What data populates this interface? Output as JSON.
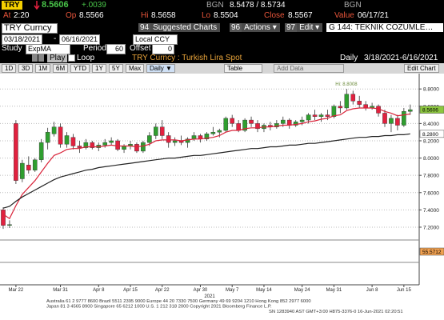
{
  "header": {
    "ticker": "TRY",
    "last_price": "8.5606",
    "change": "+.0039",
    "bid_source": "BGN",
    "bid_ask": "8.5478 / 8.5734",
    "ask_source": "BGN"
  },
  "quote": [
    {
      "label": "At",
      "value": "2:20"
    },
    {
      "label": "Op",
      "value": "8.5566"
    },
    {
      "label": "Hi",
      "value": "8.5658"
    },
    {
      "label": "Lo",
      "value": "8.5504"
    },
    {
      "label": "Close",
      "value": "8.5567"
    },
    {
      "label": "Value",
      "value": "06/17/21"
    }
  ],
  "menu": {
    "security": "TRY Curncy",
    "buttons": [
      {
        "num": "94",
        "label": "Suggested Charts"
      },
      {
        "num": "96",
        "label": "Actions ▾"
      },
      {
        "num": "97",
        "label": "Edit ▾"
      }
    ],
    "template": "G 144: TEKNIK COZUMLE…"
  },
  "range": {
    "start": "03/18/2021",
    "sep": "-",
    "end": "06/16/2021",
    "currency": "Local CCY"
  },
  "study": {
    "label": "Study",
    "name": "ExpMA",
    "period_label": "Period",
    "period": "60",
    "offset_label": "Offset",
    "offset": "0"
  },
  "controls": {
    "play": "Play",
    "loop": "Loop",
    "frequency": "Daily",
    "dates": "3/18/2021-6/16/2021"
  },
  "toolbar": {
    "periods": [
      "1D",
      "3D",
      "1M",
      "6M",
      "YTD",
      "1Y",
      "5Y",
      "Max"
    ],
    "frequency": "Daily ▼",
    "table": "Table",
    "add_data": "Add Data",
    "edit_chart": "Edit Chart"
  },
  "chart_data": {
    "type": "candlestick",
    "title": "TRY Curncy : Turkish Lira Spot",
    "categories": [
      null,
      null,
      "Mar 22",
      null,
      null,
      null,
      null,
      null,
      null,
      "Mar 31",
      null,
      null,
      null,
      null,
      null,
      "Apr 8",
      null,
      null,
      null,
      null,
      "Apr 15",
      null,
      null,
      null,
      null,
      "Apr 22",
      null,
      null,
      null,
      null,
      null,
      "Apr 30",
      null,
      null,
      null,
      null,
      "May 7",
      null,
      null,
      null,
      null,
      "May 14",
      null,
      null,
      null,
      null,
      null,
      "May 24",
      null,
      null,
      null,
      null,
      "May 31",
      null,
      null,
      null,
      null,
      null,
      "Jun 8",
      null,
      null,
      null,
      null,
      "Jun 15",
      null
    ],
    "x_year": "2021",
    "open": [
      7.4,
      7.22,
      8.4,
      7.76,
      7.92,
      7.86,
      7.98,
      8.18,
      8.28,
      8.36,
      8.16,
      8.24,
      8.14,
      8.12,
      8.18,
      8.12,
      8.15,
      8.18,
      8.2,
      8.1,
      8.14,
      8.16,
      8.08,
      8.18,
      8.26,
      8.36,
      8.26,
      8.18,
      8.2,
      8.18,
      8.22,
      8.26,
      8.22,
      8.28,
      8.3,
      8.32,
      8.46,
      8.4,
      8.32,
      8.44,
      8.4,
      8.34,
      8.38,
      8.36,
      8.4,
      8.44,
      8.38,
      8.42,
      8.44,
      8.5,
      8.48,
      8.5,
      8.48,
      8.6,
      8.58,
      8.74,
      8.66,
      8.62,
      8.58,
      8.6,
      8.52,
      8.4,
      8.46,
      8.38,
      8.54
    ],
    "high": [
      7.43,
      7.28,
      8.44,
      7.98,
      8.02,
      8.0,
      8.22,
      8.35,
      8.42,
      8.4,
      8.3,
      8.28,
      8.2,
      8.22,
      8.2,
      8.18,
      8.22,
      8.24,
      8.22,
      8.16,
      8.2,
      8.18,
      8.2,
      8.3,
      8.4,
      8.44,
      8.3,
      8.24,
      8.26,
      8.24,
      8.3,
      8.28,
      8.3,
      8.36,
      8.34,
      8.48,
      8.5,
      8.44,
      8.46,
      8.48,
      8.44,
      8.4,
      8.42,
      8.44,
      8.48,
      8.46,
      8.44,
      8.48,
      8.52,
      8.56,
      8.52,
      8.56,
      8.62,
      8.66,
      8.8,
      8.78,
      8.72,
      8.66,
      8.64,
      8.62,
      8.56,
      8.5,
      8.5,
      8.58,
      8.62
    ],
    "low": [
      7.18,
      7.19,
      7.7,
      7.72,
      7.82,
      7.84,
      7.95,
      8.1,
      8.25,
      8.12,
      8.12,
      8.1,
      8.06,
      8.1,
      8.1,
      8.08,
      8.12,
      8.15,
      8.08,
      8.06,
      8.1,
      8.06,
      8.06,
      8.14,
      8.22,
      8.22,
      8.12,
      8.14,
      8.15,
      8.12,
      8.2,
      8.18,
      8.2,
      8.26,
      8.24,
      8.3,
      8.36,
      8.3,
      8.3,
      8.36,
      8.3,
      8.3,
      8.32,
      8.34,
      8.36,
      8.34,
      8.36,
      8.38,
      8.4,
      8.44,
      8.42,
      8.44,
      8.46,
      8.52,
      8.56,
      8.62,
      8.58,
      8.55,
      8.56,
      8.48,
      8.36,
      8.3,
      8.32,
      8.36,
      8.5
    ],
    "close": [
      7.22,
      7.23,
      7.74,
      7.94,
      7.86,
      7.98,
      8.18,
      8.3,
      8.36,
      8.16,
      8.26,
      8.14,
      8.12,
      8.18,
      8.12,
      8.15,
      8.18,
      8.2,
      8.1,
      8.14,
      8.16,
      8.08,
      8.18,
      8.26,
      8.36,
      8.26,
      8.18,
      8.2,
      8.18,
      8.22,
      8.26,
      8.22,
      8.28,
      8.3,
      8.32,
      8.46,
      8.4,
      8.32,
      8.44,
      8.4,
      8.34,
      8.38,
      8.36,
      8.4,
      8.44,
      8.38,
      8.42,
      8.44,
      8.5,
      8.48,
      8.5,
      8.48,
      8.6,
      8.58,
      8.74,
      8.66,
      8.62,
      8.58,
      8.6,
      8.52,
      8.4,
      8.46,
      8.38,
      8.54,
      8.56
    ],
    "up_color": "#2f9e2f",
    "down_color": "#e2213f",
    "series": [
      {
        "color": "#d9243a",
        "values": [
          7.35,
          7.3,
          7.45,
          7.58,
          7.66,
          7.74,
          7.84,
          7.94,
          8.03,
          8.06,
          8.1,
          8.11,
          8.11,
          8.13,
          8.13,
          8.13,
          8.14,
          8.15,
          8.14,
          8.14,
          8.14,
          8.13,
          8.14,
          8.16,
          8.2,
          8.21,
          8.21,
          8.21,
          8.2,
          8.21,
          8.22,
          8.22,
          8.23,
          8.24,
          8.26,
          8.3,
          8.32,
          8.32,
          8.34,
          8.35,
          8.35,
          8.36,
          8.36,
          8.37,
          8.38,
          8.38,
          8.39,
          8.4,
          8.42,
          8.43,
          8.45,
          8.46,
          8.49,
          8.5,
          8.55,
          8.57,
          8.58,
          8.58,
          8.58,
          8.57,
          8.54,
          8.52,
          8.49,
          8.5,
          8.51
        ]
      },
      {
        "color": "#222222",
        "values": [
          7.42,
          7.44,
          7.5,
          7.55,
          7.59,
          7.63,
          7.67,
          7.71,
          7.75,
          7.78,
          7.8,
          7.82,
          7.84,
          7.86,
          7.87,
          7.89,
          7.9,
          7.91,
          7.92,
          7.93,
          7.94,
          7.95,
          7.96,
          7.97,
          7.98,
          7.99,
          8.0,
          8.0,
          8.01,
          8.02,
          8.03,
          8.03,
          8.04,
          8.05,
          8.06,
          8.07,
          8.08,
          8.09,
          8.1,
          8.11,
          8.11,
          8.12,
          8.13,
          8.13,
          8.14,
          8.15,
          8.15,
          8.16,
          8.17,
          8.17,
          8.18,
          8.19,
          8.2,
          8.21,
          8.22,
          8.23,
          8.24,
          8.24,
          8.25,
          8.25,
          8.26,
          8.26,
          8.27,
          8.27,
          8.28
        ]
      }
    ],
    "ylim": [
      7.07,
      8.95
    ],
    "yticks": [
      {
        "value": 7.2,
        "label": "7.2000"
      },
      {
        "value": 7.4,
        "label": "7.4000"
      },
      {
        "value": 7.6,
        "label": "7.6000"
      },
      {
        "value": 7.8,
        "label": "7.8000"
      },
      {
        "value": 8.0,
        "label": "8.0000"
      },
      {
        "value": 8.2,
        "label": "8.2000"
      },
      {
        "value": 8.4,
        "label": "8.4000"
      },
      {
        "value": 8.6,
        "label": "8.6000"
      },
      {
        "value": 8.8,
        "label": "8.8000"
      }
    ],
    "grid": true,
    "high_annotation": {
      "text": "Hi: 8.8008",
      "value": 8.8008
    },
    "last_labels": [
      {
        "label": "8.5606",
        "value": 8.5606,
        "color": "#8cc63f"
      },
      {
        "label": "8.2800",
        "value": 8.28,
        "color": "#ffffff"
      }
    ],
    "lower_panel_label": "55.5712"
  },
  "footer": [
    "Australia 61 2 9777 8600 Brazil 5511 2395 9000 Europe 44 20 7330 7500 Germany 49 69 9204 1210 Hong Kong 852 2977 6000",
    "Japan 81 3 4565 8900      Singapore 65 6212 1000      U.S. 1 212 318 2000           Copyright 2021 Bloomberg Finance L.P.",
    "SN 1283940 AST  GMT+3:00 H875-3376-0 16-Jun-2021 02:20:51"
  ]
}
